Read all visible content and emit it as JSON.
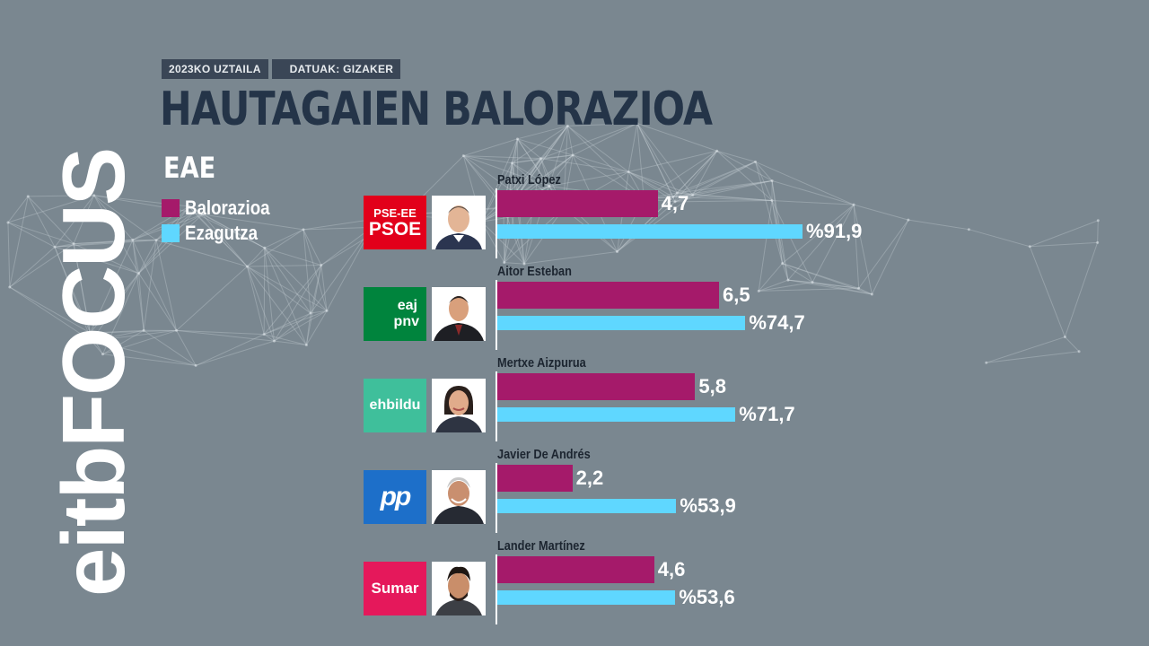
{
  "header": {
    "date_tag": "2023KO UZTAILA",
    "source_tag": "DATUAK: GIZAKER"
  },
  "title": "HAUTAGAIEN BALORAZIOA",
  "region": "EAE",
  "brand": {
    "text": "eitbFOCUS"
  },
  "colors": {
    "balorazioa": "#a51a6a",
    "ezagutza": "#5fd7ff",
    "title": "#243448",
    "background": "#7a8790"
  },
  "legend": [
    {
      "label": "Balorazioa",
      "color": "#a51a6a"
    },
    {
      "label": "Ezagutza",
      "color": "#5fd7ff"
    }
  ],
  "candidates": [
    {
      "name": "Patxi López",
      "party": "PSOE",
      "logo_line1": "PSE-EE",
      "logo_line2": "PSOE",
      "balorazioa_label": "4,7",
      "ezagutza_label": "%91,9"
    },
    {
      "name": "Aitor Esteban",
      "party": "PNV",
      "logo_line1": "eaj",
      "logo_line2": "pnv",
      "balorazioa_label": "6,5",
      "ezagutza_label": "%74,7"
    },
    {
      "name": "Mertxe Aizpurua",
      "party": "EH Bildu",
      "logo_line1": "ehbildu",
      "logo_line2": "",
      "balorazioa_label": "5,8",
      "ezagutza_label": "%71,7"
    },
    {
      "name": "Javier De Andrés",
      "party": "PP",
      "logo_line1": "pp",
      "logo_line2": "",
      "balorazioa_label": "2,2",
      "ezagutza_label": "%53,9"
    },
    {
      "name": "Lander Martínez",
      "party": "Sumar",
      "logo_line1": "Sumar",
      "logo_line2": "",
      "balorazioa_label": "4,6",
      "ezagutza_label": "%53,6"
    }
  ],
  "chart_data": {
    "type": "bar",
    "orientation": "horizontal",
    "title": "HAUTAGAIEN BALORAZIOA",
    "subtitle": "EAE",
    "categories": [
      "Patxi López",
      "Aitor Esteban",
      "Mertxe Aizpurua",
      "Javier De Andrés",
      "Lander Martínez"
    ],
    "series": [
      {
        "name": "Balorazioa",
        "values": [
          4.7,
          6.5,
          5.8,
          2.2,
          4.6
        ],
        "range": [
          0,
          10
        ]
      },
      {
        "name": "Ezagutza",
        "values": [
          91.9,
          74.7,
          71.7,
          53.9,
          53.6
        ],
        "unit": "%",
        "range": [
          0,
          100
        ]
      }
    ],
    "legend": "top-left"
  }
}
